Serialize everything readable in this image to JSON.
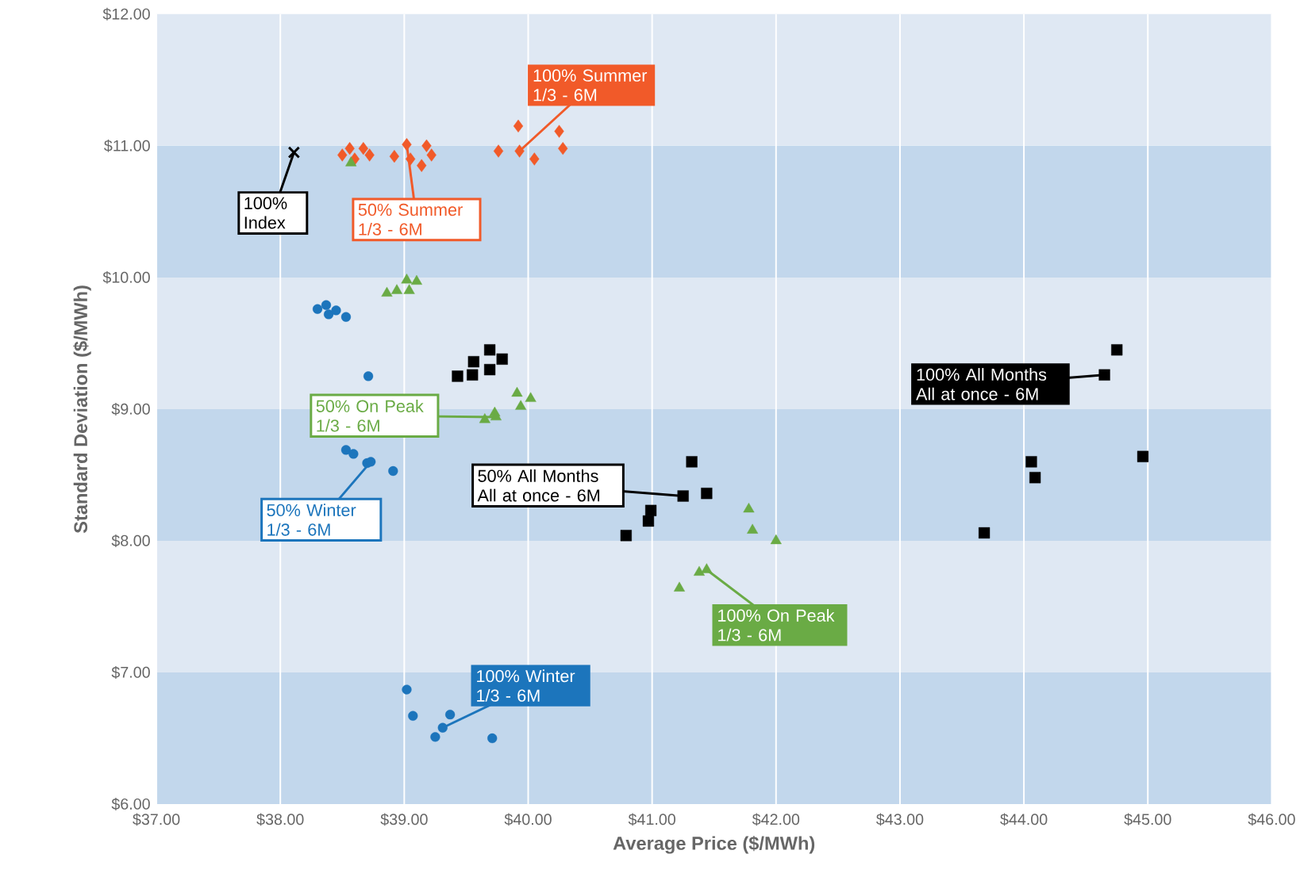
{
  "chart_data": {
    "type": "scatter",
    "xlabel": "Average Price ($/MWh)",
    "ylabel": "Standard Deviation ($/MWh)",
    "xlim": [
      37,
      46
    ],
    "ylim": [
      6,
      12
    ],
    "xticks": [
      {
        "value": 37,
        "label": "$37.00"
      },
      {
        "value": 38,
        "label": "$38.00"
      },
      {
        "value": 39,
        "label": "$39.00"
      },
      {
        "value": 40,
        "label": "$40.00"
      },
      {
        "value": 41,
        "label": "$41.00"
      },
      {
        "value": 42,
        "label": "$42.00"
      },
      {
        "value": 43,
        "label": "$43.00"
      },
      {
        "value": 44,
        "label": "$44.00"
      },
      {
        "value": 45,
        "label": "$45.00"
      },
      {
        "value": 46,
        "label": "$46.00"
      }
    ],
    "yticks": [
      {
        "value": 6,
        "label": "$6.00"
      },
      {
        "value": 7,
        "label": "$7.00"
      },
      {
        "value": 8,
        "label": "$8.00"
      },
      {
        "value": 9,
        "label": "$9.00"
      },
      {
        "value": 10,
        "label": "$10.00"
      },
      {
        "value": 11,
        "label": "$11.00"
      },
      {
        "value": 12,
        "label": "$12.00"
      }
    ],
    "grid": "x",
    "bands": [
      {
        "axis": "y",
        "from": 6,
        "to": 7,
        "color": "#c2d7ec"
      },
      {
        "axis": "y",
        "from": 7,
        "to": 8,
        "color": "#dfe8f3"
      },
      {
        "axis": "y",
        "from": 8,
        "to": 9,
        "color": "#c2d7ec"
      },
      {
        "axis": "y",
        "from": 9,
        "to": 10,
        "color": "#dfe8f3"
      },
      {
        "axis": "y",
        "from": 10,
        "to": 11,
        "color": "#c2d7ec"
      },
      {
        "axis": "y",
        "from": 11,
        "to": 12,
        "color": "#dfe8f3"
      }
    ],
    "series": [
      {
        "name": "100% Index",
        "color": "#000000",
        "marker": "cross",
        "x": [
          38.11
        ],
        "values": [
          10.95
        ]
      },
      {
        "name": "50% Summer 1/3 - 6M",
        "color": "#f15a29",
        "marker": "diamond",
        "x": [
          38.5,
          38.56,
          38.6,
          38.67,
          38.72,
          38.92,
          39.02,
          39.05,
          39.14,
          39.18,
          39.22
        ],
        "values": [
          10.93,
          10.98,
          10.9,
          10.98,
          10.93,
          10.92,
          11.01,
          10.9,
          10.85,
          11.0,
          10.93
        ]
      },
      {
        "name": "100% Summer 1/3 - 6M",
        "color": "#f15a29",
        "marker": "diamond",
        "x": [
          39.76,
          39.92,
          39.93,
          40.05,
          40.25,
          40.28
        ],
        "values": [
          10.96,
          11.15,
          10.96,
          10.9,
          11.11,
          10.98
        ]
      },
      {
        "name": "50% On Peak 1/3 - 6M",
        "color": "#6aab45",
        "marker": "triangle",
        "x": [
          38.57,
          38.86,
          38.94,
          39.02,
          39.04,
          39.1,
          39.65,
          39.73,
          39.74,
          39.91,
          39.94,
          40.02
        ],
        "values": [
          10.87,
          9.88,
          9.9,
          9.98,
          9.9,
          9.97,
          8.92,
          8.97,
          8.94,
          9.12,
          9.02,
          9.08
        ]
      },
      {
        "name": "100% On Peak 1/3 - 6M",
        "color": "#6aab45",
        "marker": "triangle",
        "x": [
          41.22,
          41.38,
          41.44,
          41.78,
          41.81,
          42.0
        ],
        "values": [
          7.64,
          7.76,
          7.78,
          8.24,
          8.08,
          8.0
        ]
      },
      {
        "name": "50% Winter 1/3 - 6M",
        "color": "#1c75bc",
        "marker": "circle",
        "x": [
          38.3,
          38.37,
          38.39,
          38.45,
          38.53,
          38.71,
          38.53,
          38.59,
          38.7,
          38.73,
          38.91
        ],
        "values": [
          9.76,
          9.79,
          9.72,
          9.75,
          9.7,
          9.25,
          8.69,
          8.66,
          8.59,
          8.6,
          8.53
        ]
      },
      {
        "name": "100% Winter 1/3 - 6M",
        "color": "#1c75bc",
        "marker": "circle",
        "x": [
          39.02,
          39.07,
          39.25,
          39.31,
          39.37,
          39.71
        ],
        "values": [
          6.87,
          6.67,
          6.51,
          6.58,
          6.68,
          6.5
        ]
      },
      {
        "name": "50% All Months All at once - 6M",
        "color": "#000000",
        "marker": "square",
        "x": [
          39.43,
          39.55,
          39.56,
          39.69,
          39.69,
          39.79,
          40.79,
          40.97,
          40.99,
          41.25,
          41.32,
          41.44
        ],
        "values": [
          9.25,
          9.26,
          9.36,
          9.45,
          9.3,
          9.38,
          8.04,
          8.15,
          8.23,
          8.34,
          8.6,
          8.36
        ]
      },
      {
        "name": "100% All Months All at once - 6M",
        "color": "#000000",
        "marker": "square",
        "x": [
          43.68,
          44.06,
          44.09,
          44.65,
          44.75,
          44.96
        ],
        "values": [
          8.06,
          8.6,
          8.48,
          9.26,
          9.45,
          8.64
        ]
      }
    ]
  }
}
